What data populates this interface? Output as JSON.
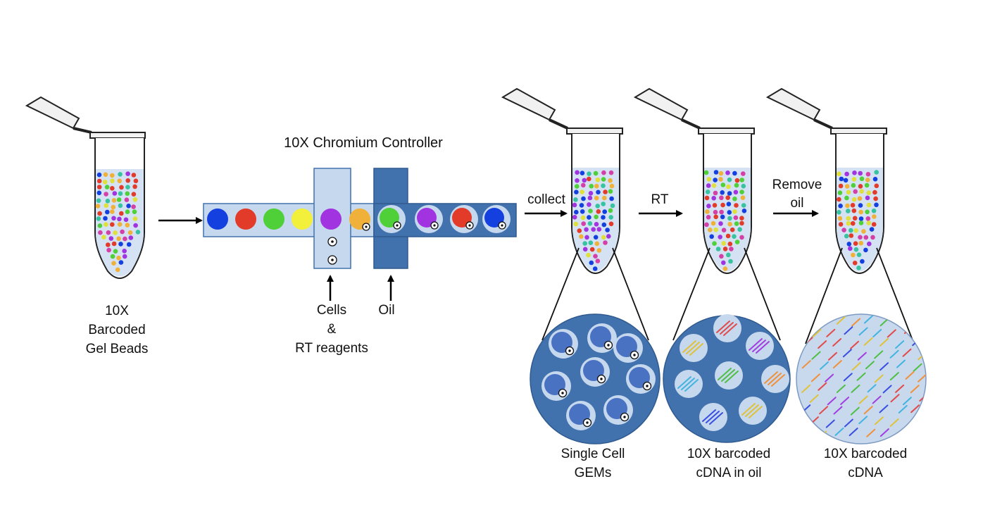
{
  "diagram": {
    "title": "10X Chromium Controller",
    "tube1_label": [
      "10X",
      "Barcoded",
      "Gel Beads"
    ],
    "cells_label": [
      "Cells",
      "&",
      "RT reagents"
    ],
    "oil_label": "Oil",
    "step_collect": "collect",
    "step_rt": "RT",
    "step_remove": [
      "Remove",
      "oil"
    ],
    "panel1_label": [
      "Single Cell",
      "GEMs"
    ],
    "panel2_label": [
      "10X barcoded",
      "cDNA in oil"
    ],
    "panel3_label": [
      "10X barcoded",
      "cDNA"
    ]
  },
  "colors": {
    "channel_light": "#c6d8ee",
    "channel_dark": "#4272ad",
    "bead_colors": [
      "#1540e0",
      "#e23b2a",
      "#4fcf38",
      "#f2f03a",
      "#a133e0",
      "#f0b13a"
    ],
    "line_colors": [
      "#e0c23a",
      "#e24a4a",
      "#a13ee0",
      "#42b4e0",
      "#4fbf44",
      "#f0903a",
      "#3a4fe0"
    ]
  }
}
